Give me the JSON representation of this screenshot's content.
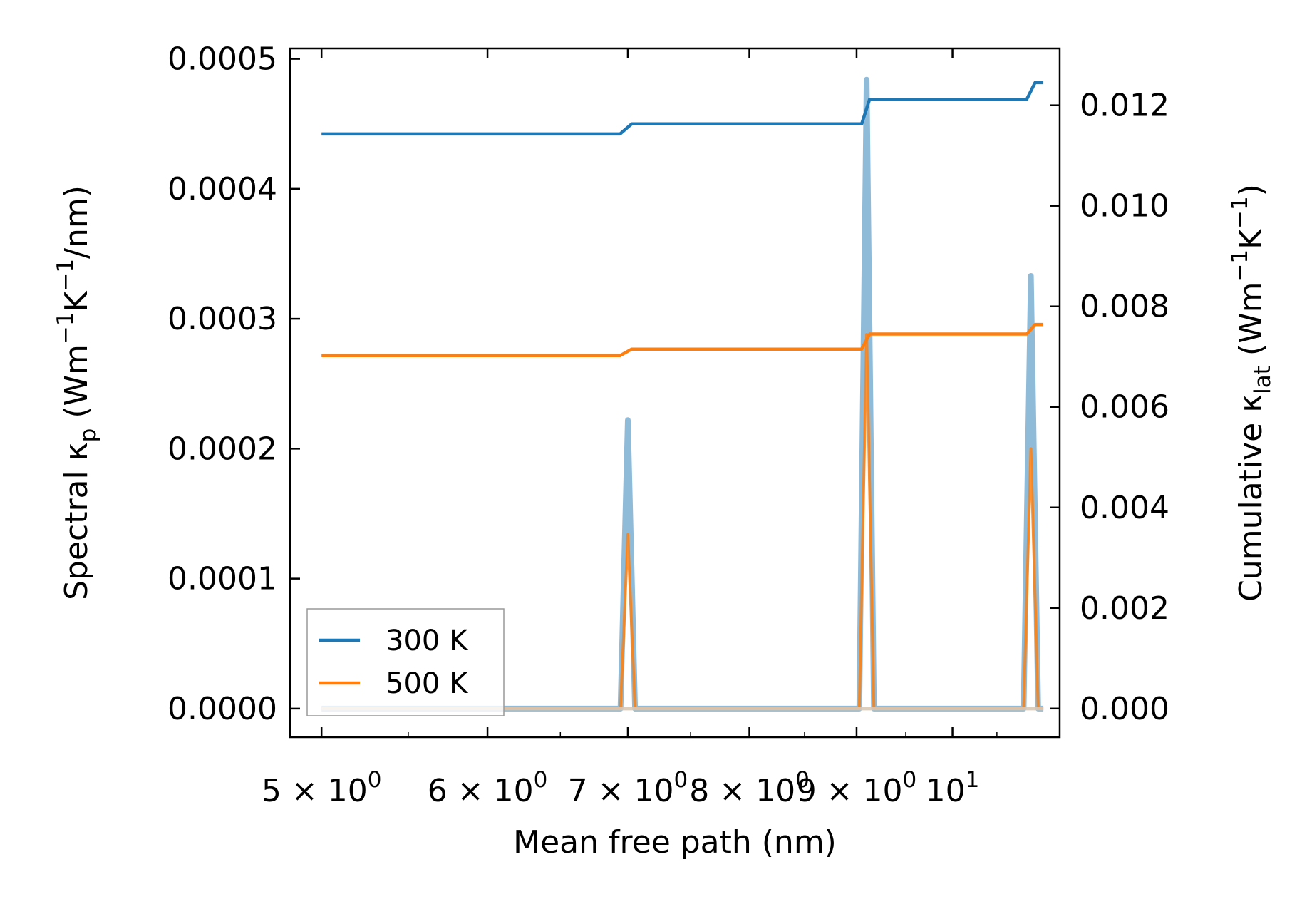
{
  "chart_data": {
    "type": "line",
    "xlabel": "Mean free path (nm)",
    "ylabel_left": {
      "main": "Spectral κ",
      "sub": "p",
      "unit_open": " (Wm",
      "exp1": "−1",
      "mid": "K",
      "exp2": "−1",
      "unit_close": "/nm)"
    },
    "ylabel_right": {
      "main": "Cumulative κ",
      "sub": "lat",
      "unit_open": " (Wm",
      "exp1": "−1",
      "mid": "K",
      "exp2": "−1",
      "unit_close": ")"
    },
    "x_scale": "log",
    "xlim": [
      4.83,
      11.25
    ],
    "ylim_left": [
      -2.2e-05,
      0.000508
    ],
    "ylim_right": [
      -0.00057,
      0.01313
    ],
    "x_tick_values": [
      5,
      6,
      7,
      8,
      9,
      10
    ],
    "x_tick_labels": [
      {
        "mantissa": "5 × 10",
        "exp": "0"
      },
      {
        "mantissa": "6 × 10",
        "exp": "0"
      },
      {
        "mantissa": "7 × 10",
        "exp": "0"
      },
      {
        "mantissa": "8 × 10",
        "exp": "0"
      },
      {
        "mantissa": "9 × 10",
        "exp": "0"
      },
      {
        "mantissa": "10",
        "exp": "1"
      }
    ],
    "y_left_ticks": [
      0.0,
      0.0001,
      0.0002,
      0.0003,
      0.0004,
      0.0005
    ],
    "y_left_tick_labels": [
      "0.0000",
      "0.0001",
      "0.0002",
      "0.0003",
      "0.0004",
      "0.0005"
    ],
    "y_right_ticks": [
      0.0,
      0.002,
      0.004,
      0.006,
      0.008,
      0.01,
      0.012
    ],
    "y_right_tick_labels": [
      "0.000",
      "0.002",
      "0.004",
      "0.006",
      "0.008",
      "0.010",
      "0.012"
    ],
    "legend_position": "lower-left",
    "grid": false,
    "series": [
      {
        "name": "300 K",
        "color": "#1f77b4",
        "spectral_peaks": [
          {
            "x": 7.0,
            "y": 0.000222
          },
          {
            "x": 9.1,
            "y": 0.000484
          },
          {
            "x": 10.9,
            "y": 0.000333
          }
        ],
        "cumulative": {
          "x": [
            5.0,
            6.94,
            7.03,
            9.05,
            9.13,
            10.85,
            10.95,
            11.05
          ],
          "y": [
            0.01143,
            0.01143,
            0.01163,
            0.01163,
            0.01212,
            0.01212,
            0.01245,
            0.01245
          ]
        }
      },
      {
        "name": "500 K",
        "color": "#ff7f0e",
        "spectral_peaks": [
          {
            "x": 7.0,
            "y": 0.000134
          },
          {
            "x": 9.1,
            "y": 0.000288
          },
          {
            "x": 10.9,
            "y": 0.0002
          }
        ],
        "cumulative": {
          "x": [
            5.0,
            6.94,
            7.03,
            9.05,
            9.13,
            10.85,
            10.95,
            11.05
          ],
          "y": [
            0.00702,
            0.00702,
            0.00715,
            0.00715,
            0.00745,
            0.00745,
            0.00764,
            0.00764
          ]
        }
      }
    ]
  }
}
